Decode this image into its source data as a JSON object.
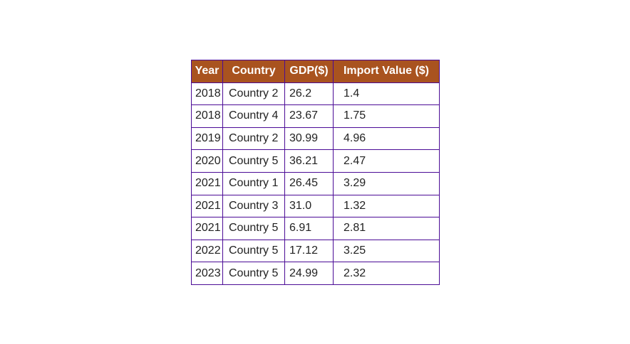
{
  "chart_data": {
    "type": "table",
    "columns": [
      "Year",
      "Country",
      "GDP($)",
      "Import Value ($)"
    ],
    "rows": [
      [
        "2018",
        "Country 2",
        "26.2",
        "1.4"
      ],
      [
        "2018",
        "Country 4",
        "23.67",
        "1.75"
      ],
      [
        "2019",
        "Country 2",
        "30.99",
        "4.96"
      ],
      [
        "2020",
        "Country 5",
        "36.21",
        "2.47"
      ],
      [
        "2021",
        "Country 1",
        "26.45",
        "3.29"
      ],
      [
        "2021",
        "Country 3",
        "31.0",
        "1.32"
      ],
      [
        "2021",
        "Country 5",
        "6.91",
        "2.81"
      ],
      [
        "2022",
        "Country 5",
        "17.12",
        "3.25"
      ],
      [
        "2023",
        "Country 5",
        "24.99",
        "2.32"
      ]
    ],
    "header_color": "#a9531f",
    "border_color": "#4b0b96",
    "header_text_color": "#ffffff"
  }
}
